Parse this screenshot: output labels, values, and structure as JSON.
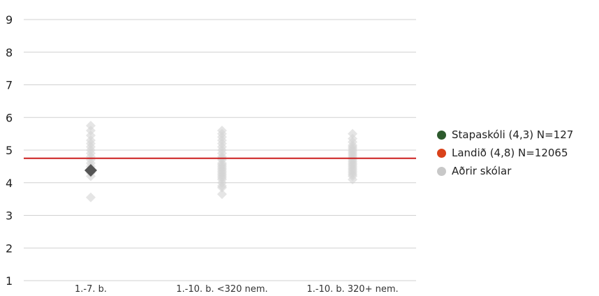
{
  "chart_data": {
    "type": "scatter",
    "categories": [
      "1.-7. b.",
      "1.-10. b. <320 nem.",
      "1.-10. b. 320+ nem."
    ],
    "ylim": [
      1,
      9
    ],
    "yticks": [
      "1",
      "2",
      "3",
      "4",
      "5",
      "6",
      "7",
      "8",
      "9"
    ],
    "grid": true,
    "legend_position": "right",
    "reference_line": {
      "name": "Landið (4,8) N=12065",
      "value": 4.75,
      "color": "#cc1f1f"
    },
    "series": [
      {
        "name": "Aðrir skólar",
        "color": "#d3d3d3",
        "points": [
          {
            "category": 0,
            "y": 5.75
          },
          {
            "category": 0,
            "y": 5.6
          },
          {
            "category": 0,
            "y": 5.45
          },
          {
            "category": 0,
            "y": 5.3
          },
          {
            "category": 0,
            "y": 5.2
          },
          {
            "category": 0,
            "y": 5.1
          },
          {
            "category": 0,
            "y": 5.0
          },
          {
            "category": 0,
            "y": 4.9
          },
          {
            "category": 0,
            "y": 4.8
          },
          {
            "category": 0,
            "y": 4.7
          },
          {
            "category": 0,
            "y": 4.6
          },
          {
            "category": 0,
            "y": 4.5
          },
          {
            "category": 0,
            "y": 4.4
          },
          {
            "category": 0,
            "y": 4.3
          },
          {
            "category": 0,
            "y": 4.2
          },
          {
            "category": 0,
            "y": 3.55
          },
          {
            "category": 1,
            "y": 5.6
          },
          {
            "category": 1,
            "y": 5.5
          },
          {
            "category": 1,
            "y": 5.4
          },
          {
            "category": 1,
            "y": 5.3
          },
          {
            "category": 1,
            "y": 5.2
          },
          {
            "category": 1,
            "y": 5.1
          },
          {
            "category": 1,
            "y": 5.0
          },
          {
            "category": 1,
            "y": 4.9
          },
          {
            "category": 1,
            "y": 4.8
          },
          {
            "category": 1,
            "y": 4.75
          },
          {
            "category": 1,
            "y": 4.7
          },
          {
            "category": 1,
            "y": 4.6
          },
          {
            "category": 1,
            "y": 4.55
          },
          {
            "category": 1,
            "y": 4.5
          },
          {
            "category": 1,
            "y": 4.45
          },
          {
            "category": 1,
            "y": 4.4
          },
          {
            "category": 1,
            "y": 4.35
          },
          {
            "category": 1,
            "y": 4.3
          },
          {
            "category": 1,
            "y": 4.25
          },
          {
            "category": 1,
            "y": 4.2
          },
          {
            "category": 1,
            "y": 4.15
          },
          {
            "category": 1,
            "y": 4.1
          },
          {
            "category": 1,
            "y": 4.0
          },
          {
            "category": 1,
            "y": 3.9
          },
          {
            "category": 1,
            "y": 3.85
          },
          {
            "category": 1,
            "y": 3.65
          },
          {
            "category": 2,
            "y": 5.5
          },
          {
            "category": 2,
            "y": 5.35
          },
          {
            "category": 2,
            "y": 5.25
          },
          {
            "category": 2,
            "y": 5.15
          },
          {
            "category": 2,
            "y": 5.1
          },
          {
            "category": 2,
            "y": 5.05
          },
          {
            "category": 2,
            "y": 5.0
          },
          {
            "category": 2,
            "y": 4.95
          },
          {
            "category": 2,
            "y": 4.9
          },
          {
            "category": 2,
            "y": 4.85
          },
          {
            "category": 2,
            "y": 4.8
          },
          {
            "category": 2,
            "y": 4.75
          },
          {
            "category": 2,
            "y": 4.7
          },
          {
            "category": 2,
            "y": 4.65
          },
          {
            "category": 2,
            "y": 4.6
          },
          {
            "category": 2,
            "y": 4.55
          },
          {
            "category": 2,
            "y": 4.5
          },
          {
            "category": 2,
            "y": 4.45
          },
          {
            "category": 2,
            "y": 4.4
          },
          {
            "category": 2,
            "y": 4.35
          },
          {
            "category": 2,
            "y": 4.3
          },
          {
            "category": 2,
            "y": 4.25
          },
          {
            "category": 2,
            "y": 4.2
          },
          {
            "category": 2,
            "y": 4.1
          }
        ]
      },
      {
        "name": "Stapaskóli (4,3) N=127",
        "color": "#555555",
        "legend_color": "#2d5a2d",
        "points": [
          {
            "category": 0,
            "y": 4.38
          }
        ]
      }
    ]
  },
  "legend": [
    {
      "label": "Stapaskóli (4,3) N=127",
      "color": "#2d5a2d"
    },
    {
      "label": "Landið (4,8) N=12065",
      "color": "#d9421a"
    },
    {
      "label": "Aðrir skólar",
      "color": "#c8c8c8"
    }
  ]
}
